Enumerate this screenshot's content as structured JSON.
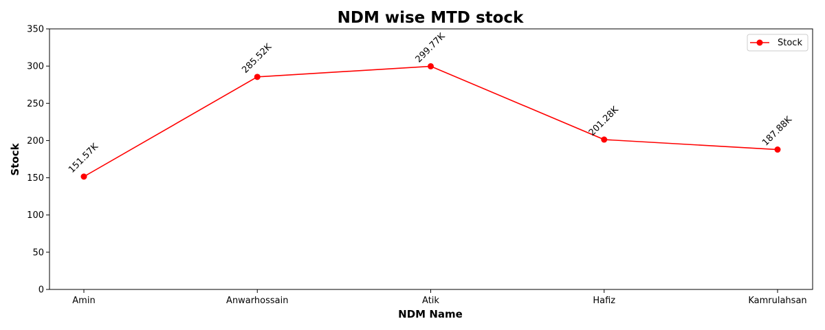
{
  "chart_data": {
    "type": "line",
    "title": "NDM wise MTD stock",
    "xlabel": "NDM Name",
    "ylabel": "Stock",
    "categories": [
      "Amin",
      "Anwarhossain",
      "Atik",
      "Hafiz",
      "Kamrulahsan"
    ],
    "series": [
      {
        "name": "Stock",
        "values": [
          151.57,
          285.52,
          299.77,
          201.28,
          187.88
        ],
        "labels": [
          "151.57K",
          "285.52K",
          "299.77K",
          "201.28K",
          "187.88K"
        ],
        "color": "#ff0000"
      }
    ],
    "ylim": [
      0,
      350
    ],
    "yticks": [
      0,
      50,
      100,
      150,
      200,
      250,
      300,
      350
    ],
    "grid": false,
    "legend": "top-right"
  }
}
